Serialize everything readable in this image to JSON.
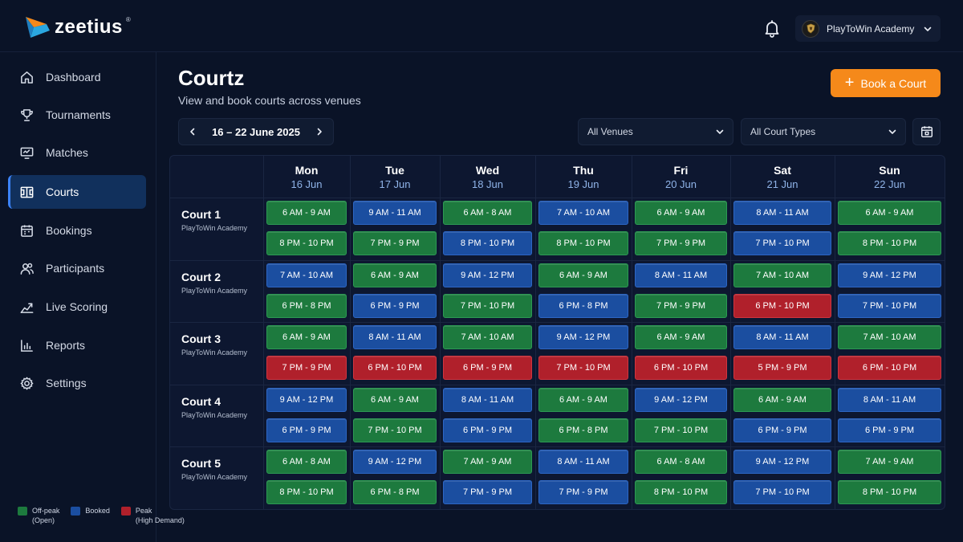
{
  "app": {
    "brand": "zeetius",
    "brand_mark": "®",
    "account": "PlayToWin Academy"
  },
  "sidebar": {
    "items": [
      {
        "label": "Dashboard",
        "icon": "home-icon"
      },
      {
        "label": "Tournaments",
        "icon": "trophy-icon"
      },
      {
        "label": "Matches",
        "icon": "monitor-icon"
      },
      {
        "label": "Courts",
        "icon": "court-icon",
        "active": true
      },
      {
        "label": "Bookings",
        "icon": "calendar-icon"
      },
      {
        "label": "Participants",
        "icon": "users-icon"
      },
      {
        "label": "Live Scoring",
        "icon": "trend-icon"
      },
      {
        "label": "Reports",
        "icon": "bar-chart-icon"
      },
      {
        "label": "Settings",
        "icon": "gear-icon"
      }
    ]
  },
  "legend": {
    "offpeak_1": "Off-peak",
    "offpeak_2": "(Open)",
    "booked": "Booked",
    "peak_1": "Peak",
    "peak_2": "(High Demand)"
  },
  "colors": {
    "off": "#1d7a3e",
    "booked": "#1b4ea0",
    "peak": "#b0202b",
    "accent": "#f5891a"
  },
  "main": {
    "title": "Courtz",
    "subtitle": "View and book courts across venues",
    "book_button": "Book a Court",
    "date_range": "16 – 22 June 2025",
    "venue_select": "All Venues",
    "type_select": "All Court Types"
  },
  "days": [
    {
      "name": "Mon",
      "date": "16 Jun"
    },
    {
      "name": "Tue",
      "date": "17 Jun"
    },
    {
      "name": "Wed",
      "date": "18 Jun"
    },
    {
      "name": "Thu",
      "date": "19 Jun"
    },
    {
      "name": "Fri",
      "date": "20 Jun"
    },
    {
      "name": "Sat",
      "date": "21 Jun"
    },
    {
      "name": "Sun",
      "date": "22 Jun"
    }
  ],
  "courts": [
    {
      "name": "Court 1",
      "venue": "PlayToWin Academy",
      "slots": [
        [
          [
            "6 AM - 9 AM",
            "off"
          ],
          [
            "8 PM - 10 PM",
            "off"
          ]
        ],
        [
          [
            "9 AM - 11 AM",
            "booked"
          ],
          [
            "7 PM - 9 PM",
            "off"
          ]
        ],
        [
          [
            "6 AM - 8 AM",
            "off"
          ],
          [
            "8 PM - 10 PM",
            "booked"
          ]
        ],
        [
          [
            "7 AM - 10 AM",
            "booked"
          ],
          [
            "8 PM - 10 PM",
            "off"
          ]
        ],
        [
          [
            "6 AM - 9 AM",
            "off"
          ],
          [
            "7 PM - 9 PM",
            "off"
          ]
        ],
        [
          [
            "8 AM - 11 AM",
            "booked"
          ],
          [
            "7 PM - 10 PM",
            "booked"
          ]
        ],
        [
          [
            "6 AM - 9 AM",
            "off"
          ],
          [
            "8 PM - 10 PM",
            "off"
          ]
        ]
      ]
    },
    {
      "name": "Court 2",
      "venue": "PlayToWin Academy",
      "slots": [
        [
          [
            "7 AM - 10 AM",
            "booked"
          ],
          [
            "6 PM - 8 PM",
            "off"
          ]
        ],
        [
          [
            "6 AM - 9 AM",
            "off"
          ],
          [
            "6 PM - 9 PM",
            "booked"
          ]
        ],
        [
          [
            "9 AM - 12 PM",
            "booked"
          ],
          [
            "7 PM - 10 PM",
            "off"
          ]
        ],
        [
          [
            "6 AM - 9 AM",
            "off"
          ],
          [
            "6 PM - 8 PM",
            "booked"
          ]
        ],
        [
          [
            "8 AM - 11 AM",
            "booked"
          ],
          [
            "7 PM - 9 PM",
            "off"
          ]
        ],
        [
          [
            "7 AM - 10 AM",
            "off"
          ],
          [
            "6 PM - 10 PM",
            "peak"
          ]
        ],
        [
          [
            "9 AM - 12 PM",
            "booked"
          ],
          [
            "7 PM - 10 PM",
            "booked"
          ]
        ]
      ]
    },
    {
      "name": "Court 3",
      "venue": "PlayToWin Academy",
      "slots": [
        [
          [
            "6 AM - 9 AM",
            "off"
          ],
          [
            "7 PM - 9 PM",
            "peak"
          ]
        ],
        [
          [
            "8 AM - 11 AM",
            "booked"
          ],
          [
            "6 PM - 10 PM",
            "peak"
          ]
        ],
        [
          [
            "7 AM - 10 AM",
            "off"
          ],
          [
            "6 PM - 9 PM",
            "peak"
          ]
        ],
        [
          [
            "9 AM - 12 PM",
            "booked"
          ],
          [
            "7 PM - 10 PM",
            "peak"
          ]
        ],
        [
          [
            "6 AM - 9 AM",
            "off"
          ],
          [
            "6 PM - 10 PM",
            "peak"
          ]
        ],
        [
          [
            "8 AM - 11 AM",
            "booked"
          ],
          [
            "5 PM - 9 PM",
            "peak"
          ]
        ],
        [
          [
            "7 AM - 10 AM",
            "off"
          ],
          [
            "6 PM - 10 PM",
            "peak"
          ]
        ]
      ]
    },
    {
      "name": "Court 4",
      "venue": "PlayToWin Academy",
      "slots": [
        [
          [
            "9 AM - 12 PM",
            "booked"
          ],
          [
            "6 PM - 9 PM",
            "booked"
          ]
        ],
        [
          [
            "6 AM - 9 AM",
            "off"
          ],
          [
            "7 PM - 10 PM",
            "off"
          ]
        ],
        [
          [
            "8 AM - 11 AM",
            "booked"
          ],
          [
            "6 PM - 9 PM",
            "booked"
          ]
        ],
        [
          [
            "6 AM - 9 AM",
            "off"
          ],
          [
            "6 PM - 8 PM",
            "off"
          ]
        ],
        [
          [
            "9 AM - 12 PM",
            "booked"
          ],
          [
            "7 PM - 10 PM",
            "off"
          ]
        ],
        [
          [
            "6 AM - 9 AM",
            "off"
          ],
          [
            "6 PM - 9 PM",
            "booked"
          ]
        ],
        [
          [
            "8 AM - 11 AM",
            "booked"
          ],
          [
            "6 PM - 9 PM",
            "booked"
          ]
        ]
      ]
    },
    {
      "name": "Court 5",
      "venue": "PlayToWin Academy",
      "slots": [
        [
          [
            "6 AM - 8 AM",
            "off"
          ],
          [
            "8 PM - 10 PM",
            "off"
          ]
        ],
        [
          [
            "9 AM - 12 PM",
            "booked"
          ],
          [
            "6 PM - 8 PM",
            "off"
          ]
        ],
        [
          [
            "7 AM - 9 AM",
            "off"
          ],
          [
            "7 PM - 9 PM",
            "booked"
          ]
        ],
        [
          [
            "8 AM - 11 AM",
            "booked"
          ],
          [
            "7 PM - 9 PM",
            "booked"
          ]
        ],
        [
          [
            "6 AM - 8 AM",
            "off"
          ],
          [
            "8 PM - 10 PM",
            "off"
          ]
        ],
        [
          [
            "9 AM - 12 PM",
            "booked"
          ],
          [
            "7 PM - 10 PM",
            "booked"
          ]
        ],
        [
          [
            "7 AM - 9 AM",
            "off"
          ],
          [
            "8 PM - 10 PM",
            "off"
          ]
        ]
      ]
    }
  ]
}
